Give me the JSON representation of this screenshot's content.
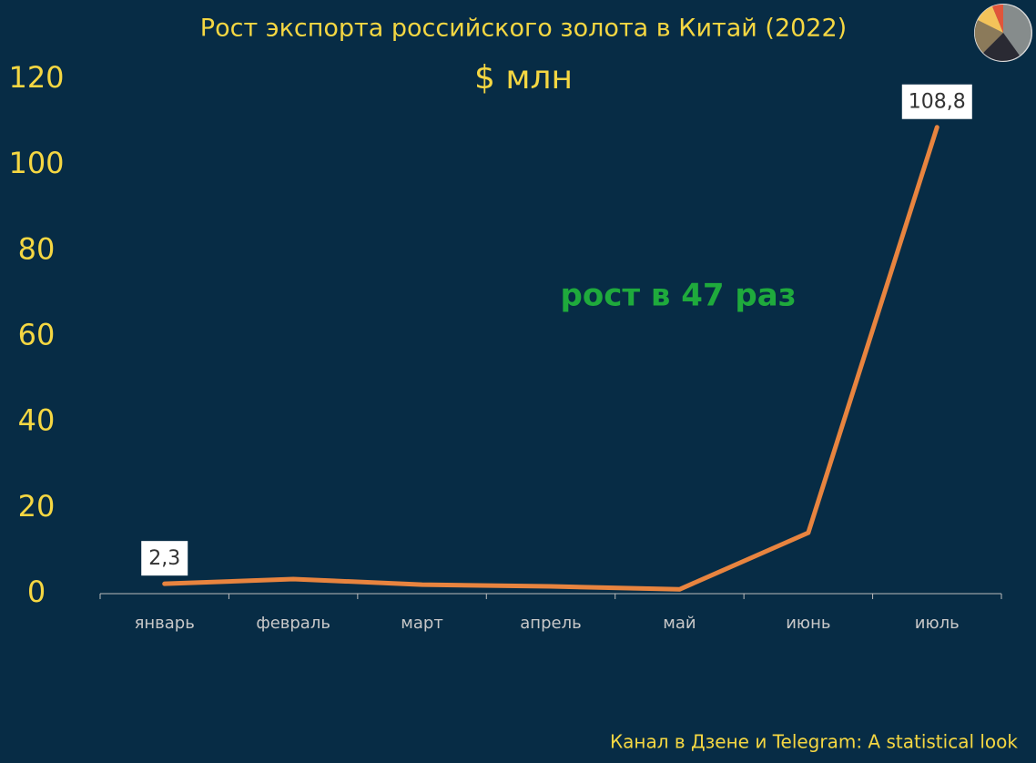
{
  "chart_data": {
    "type": "line",
    "title": "Рост экспорта российского золота в Китай (2022)",
    "subtitle": "$ млн",
    "annotation": "рост в 47 раз",
    "source": "Канал в Дзене и Telegram: A statistical look",
    "categories": [
      "январь",
      "февраль",
      "март",
      "апрель",
      "май",
      "июнь",
      "июль"
    ],
    "values": [
      2.3,
      3.4,
      2.1,
      1.7,
      1.0,
      14.2,
      108.8
    ],
    "value_labels": [
      "2,3",
      null,
      null,
      null,
      null,
      null,
      "108,8"
    ],
    "color": "#e8843f",
    "ylim": [
      0,
      120
    ],
    "yticks": [
      0,
      20,
      40,
      60,
      80,
      100,
      120
    ],
    "grid": false
  }
}
